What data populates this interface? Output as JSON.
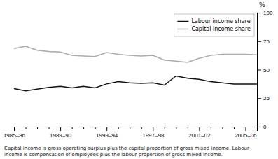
{
  "chart_data": {
    "type": "line",
    "categories": [
      "1985–86",
      null,
      null,
      null,
      "1989–90",
      null,
      null,
      null,
      "1993–94",
      null,
      null,
      null,
      "1997–98",
      null,
      null,
      null,
      "2001–02",
      null,
      null,
      null,
      "2005–06",
      null
    ],
    "series": [
      {
        "name": "Labour income share",
        "color": "#111111",
        "values": [
          33.5,
          31.5,
          33.0,
          34.5,
          35.5,
          34.0,
          35.5,
          34.0,
          37.5,
          39.5,
          38.5,
          38.0,
          38.5,
          36.5,
          44.5,
          42.5,
          41.5,
          39.5,
          38.5,
          37.5,
          37.5,
          37.5
        ]
      },
      {
        "name": "Capital income share",
        "color": "#aaaaaa",
        "values": [
          68.5,
          70.5,
          67.0,
          66.0,
          65.5,
          62.5,
          62.0,
          61.5,
          65.0,
          63.5,
          62.5,
          62.0,
          62.5,
          58.5,
          57.5,
          56.5,
          60.0,
          62.5,
          63.5,
          63.5,
          63.5,
          63.0
        ]
      }
    ],
    "ylabel": "%",
    "ylim": [
      0,
      100
    ],
    "yticks": [
      0,
      25,
      50,
      75,
      100
    ],
    "grid": false,
    "legend": "upper right",
    "annotations": [
      "Capital income is gross operating surplus plus the capital proportion of gross mixed income. Labour",
      "income is compensation of employees plus the labour proportion of gross mixed income."
    ]
  }
}
